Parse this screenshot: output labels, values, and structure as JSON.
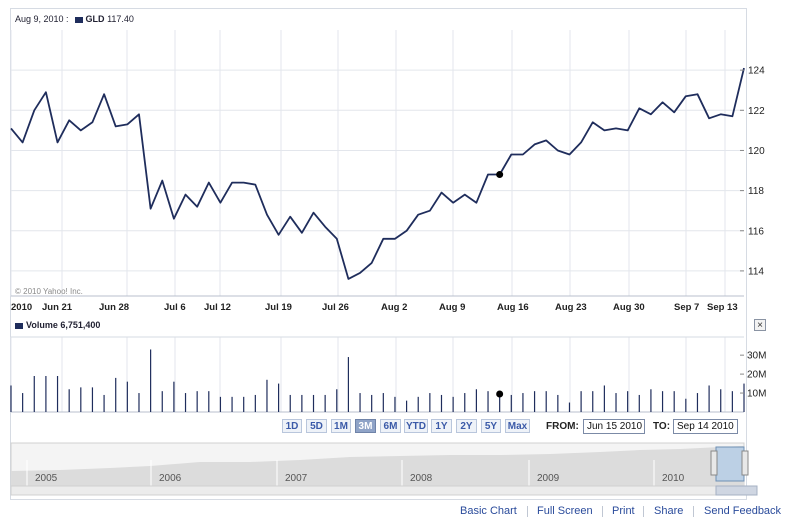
{
  "header": {
    "date": "Aug 9, 2010 :",
    "symbol": "GLD",
    "price": "117.40"
  },
  "volume_header": {
    "label": "Volume",
    "value": "6,751,400"
  },
  "copyright": "© 2010 Yahoo! Inc.",
  "ranges": [
    "1D",
    "5D",
    "1M",
    "3M",
    "6M",
    "YTD",
    "1Y",
    "2Y",
    "5Y",
    "Max"
  ],
  "active_range": "3M",
  "from_label": "FROM:",
  "from_value": "Jun 15 2010",
  "to_label": "TO:",
  "to_value": "Sep 14 2010",
  "close_label": "×",
  "overview_years": [
    "2005",
    "2006",
    "2007",
    "2008",
    "2009",
    "2010"
  ],
  "footer": {
    "basic": "Basic Chart",
    "full": "Full Screen",
    "print": "Print",
    "share": "Share",
    "feedback": "Send Feedback"
  },
  "colors": {
    "line": "#1f2d5c",
    "grid": "#e3e6ec",
    "overview_fill": "#dcdcdc"
  },
  "chart_data": [
    {
      "type": "line",
      "title": "GLD",
      "x_labels": [
        "2010",
        "Jun 21",
        "Jun 28",
        "Jul 6",
        "Jul 12",
        "Jul 19",
        "Jul 26",
        "Aug 2",
        "Aug 9",
        "Aug 16",
        "Aug 23",
        "Aug 30",
        "Sep 7",
        "Sep 13"
      ],
      "y_ticks": [
        114,
        116,
        118,
        120,
        122,
        124
      ],
      "ylim": [
        112.8,
        126
      ],
      "values": [
        121.1,
        120.4,
        122.0,
        122.9,
        120.4,
        121.5,
        121.0,
        121.4,
        122.8,
        121.2,
        121.3,
        121.8,
        117.1,
        118.5,
        116.6,
        117.8,
        117.2,
        118.4,
        117.4,
        118.4,
        118.4,
        118.3,
        116.8,
        115.8,
        116.7,
        115.9,
        116.9,
        116.2,
        115.6,
        113.6,
        113.9,
        114.4,
        115.6,
        115.6,
        116.0,
        116.8,
        117.0,
        117.9,
        117.4,
        117.8,
        117.4,
        118.8,
        118.8,
        119.8,
        119.8,
        120.3,
        120.5,
        120.0,
        119.8,
        120.4,
        121.4,
        121.0,
        121.1,
        121.0,
        122.1,
        121.8,
        122.4,
        121.9,
        122.7,
        122.8,
        121.6,
        121.8,
        121.7,
        124.1
      ],
      "highlight": {
        "label": "Aug 9, 2010",
        "value": 117.4
      },
      "grid": true
    },
    {
      "type": "bar",
      "title": "Volume",
      "y_ticks": [
        "10M",
        "20M",
        "30M"
      ],
      "y_tick_values": [
        10,
        20,
        30
      ],
      "ylim": [
        0,
        38
      ],
      "values": [
        14,
        10,
        19,
        19,
        19,
        12,
        13,
        13,
        9,
        18,
        16,
        10,
        33,
        11,
        16,
        10,
        11,
        11,
        8,
        8,
        8,
        9,
        17,
        15,
        9,
        9,
        9,
        9,
        12,
        29,
        10,
        9,
        10,
        8,
        6,
        8,
        10,
        9,
        8,
        10,
        12,
        11,
        11,
        9,
        10,
        11,
        11,
        9,
        5,
        11,
        11,
        14,
        10,
        11,
        9,
        12,
        11,
        11,
        7,
        10,
        14,
        12,
        11,
        15
      ]
    }
  ]
}
